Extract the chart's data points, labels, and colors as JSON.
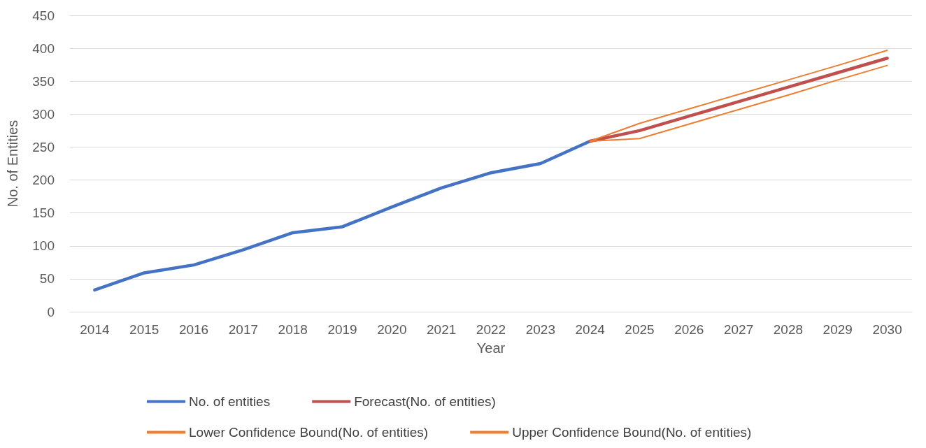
{
  "chart_data": {
    "type": "line",
    "xlabel": "Year",
    "ylabel": "No. of Entities",
    "categories": [
      "2014",
      "2015",
      "2016",
      "2017",
      "2018",
      "2019",
      "2020",
      "2021",
      "2022",
      "2023",
      "2024",
      "2025",
      "2026",
      "2027",
      "2028",
      "2029",
      "2030"
    ],
    "series": [
      {
        "name": "No. of entities",
        "color": "#4472c4",
        "values": [
          33,
          59,
          71,
          94,
          120,
          129,
          159,
          188,
          211,
          225,
          259,
          null,
          null,
          null,
          null,
          null,
          null
        ]
      },
      {
        "name": "Forecast(No. of entities)",
        "color": "#c0504d",
        "values": [
          null,
          null,
          null,
          null,
          null,
          null,
          null,
          null,
          null,
          null,
          259,
          275,
          297,
          319,
          341,
          363,
          385
        ]
      },
      {
        "name": "Lower Confidence Bound(No. of entities)",
        "color": "#ed7d31",
        "values": [
          null,
          null,
          null,
          null,
          null,
          null,
          null,
          null,
          null,
          null,
          259,
          263,
          285,
          307,
          329,
          352,
          374
        ]
      },
      {
        "name": "Upper Confidence Bound(No. of entities)",
        "color": "#ed7d31",
        "values": [
          null,
          null,
          null,
          null,
          null,
          null,
          null,
          null,
          null,
          null,
          259,
          286,
          308,
          330,
          352,
          374,
          397
        ]
      }
    ],
    "ylim": [
      0,
      450
    ],
    "yticks": [
      0,
      50,
      100,
      150,
      200,
      250,
      300,
      350,
      400,
      450
    ],
    "grid": "y",
    "legend": "bottom",
    "marker": "none",
    "line_style": "solid"
  }
}
